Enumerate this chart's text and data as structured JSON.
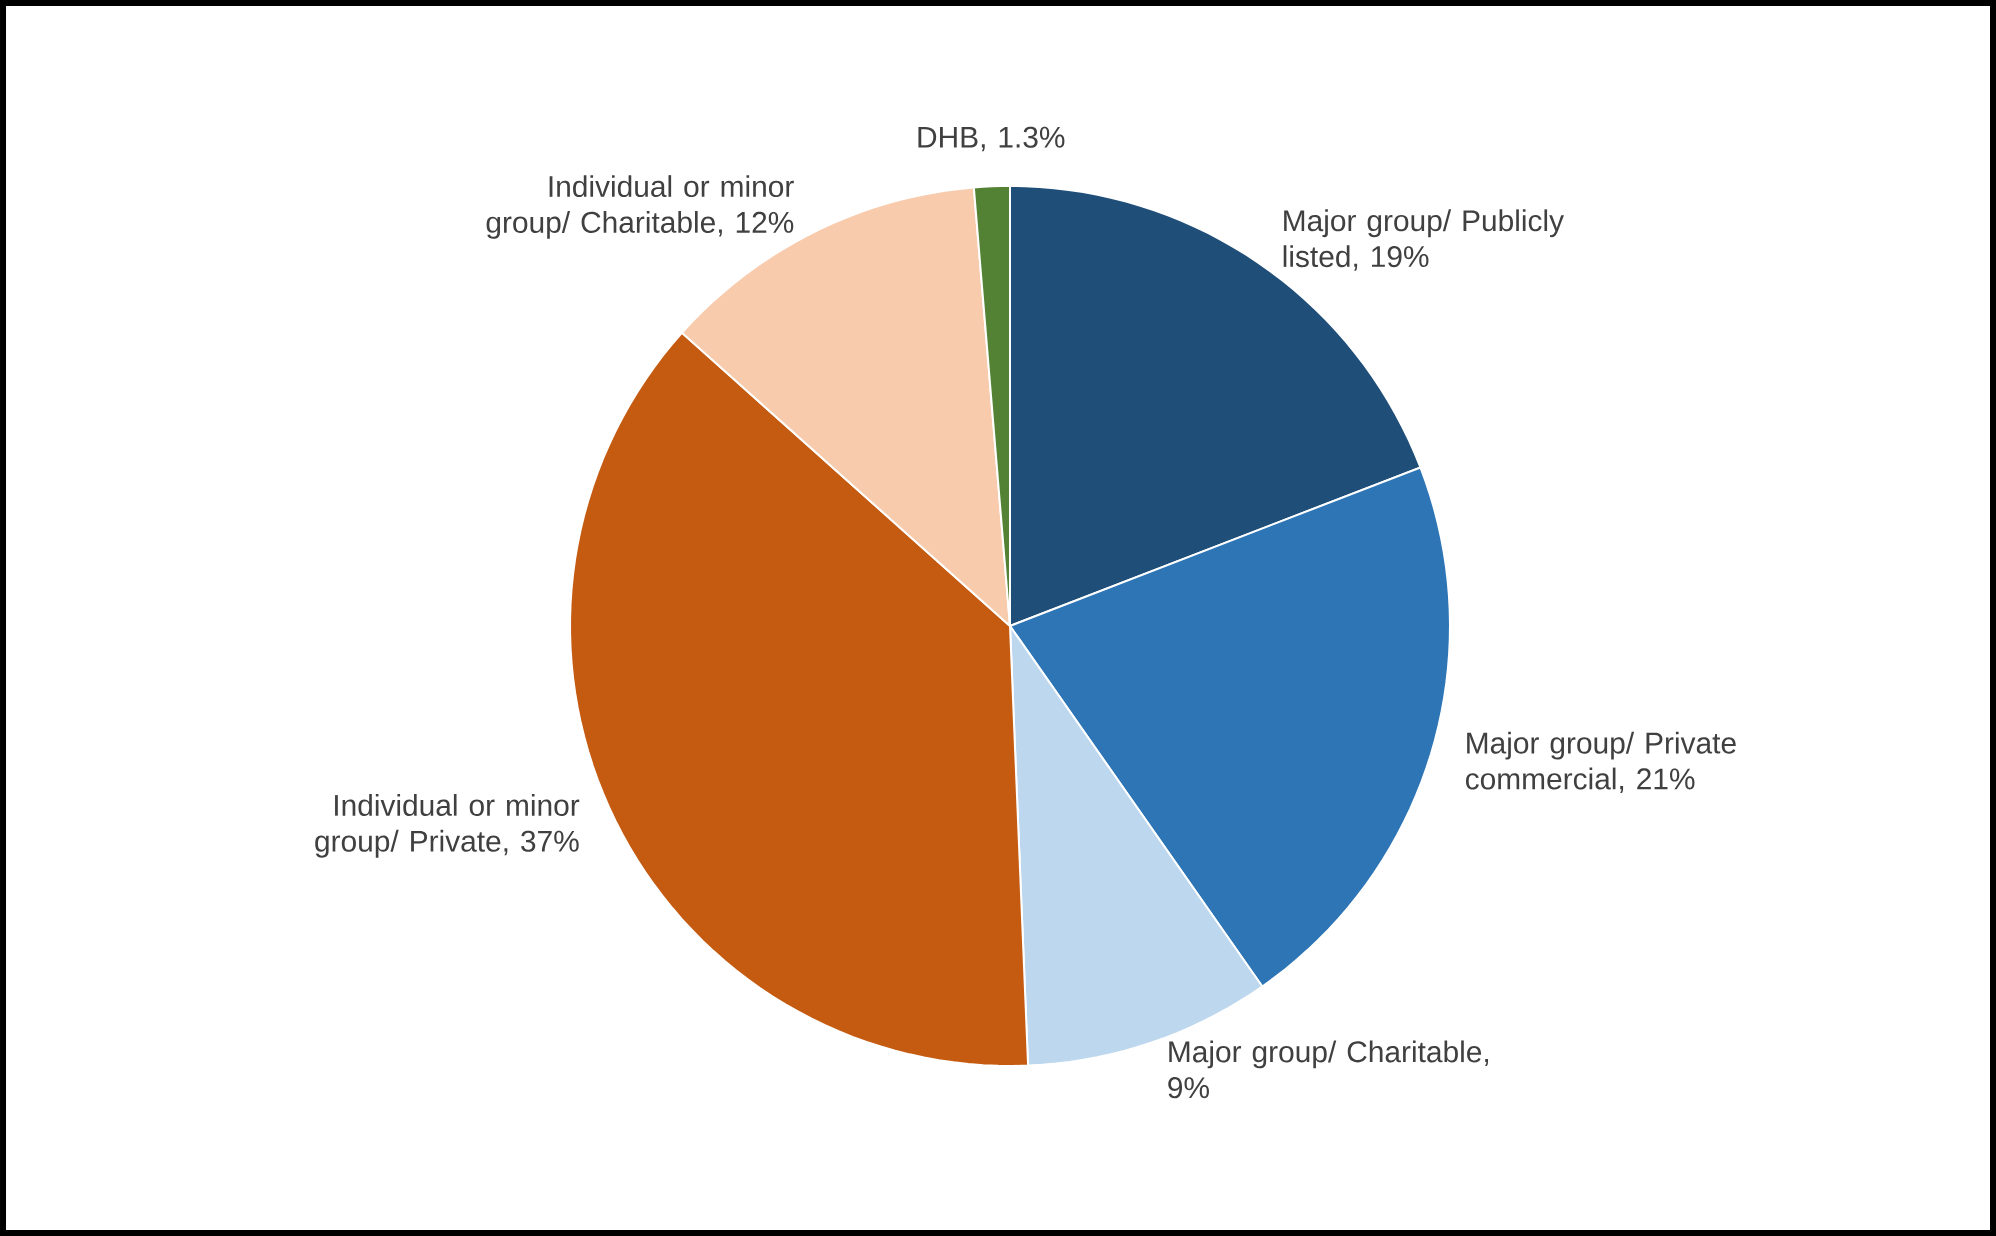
{
  "chart_data": {
    "type": "pie",
    "categories": [
      "Major group/ Publicly listed, 19%",
      "Major group/ Private commercial, 21%",
      "Major group/ Charitable, 9%",
      "Individual or minor group/ Private, 37%",
      "Individual or minor group/ Charitable, 12%",
      "DHB, 1.3%"
    ],
    "values": [
      19,
      21,
      9,
      37,
      12,
      1.3
    ],
    "colors": [
      "#1f4e79",
      "#2e75b6",
      "#bdd7ee",
      "#c55a11",
      "#f8cbad",
      "#548235"
    ]
  }
}
